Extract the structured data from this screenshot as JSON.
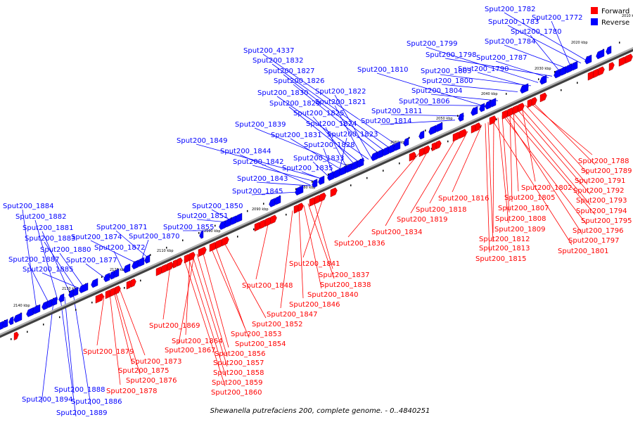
{
  "caption": "Shewanella putrefaciens 200, complete genome. - 0..4840251",
  "colors": {
    "forward": "#ff0000",
    "reverse": "#0000ff",
    "backbone": "#808080"
  },
  "legend": {
    "forward": "Forward",
    "reverse": "Reverse"
  },
  "tick_labels": [
    "2010 kbp",
    "2020 kbp",
    "2030 kbp",
    "2040 kbp",
    "2050 kbp",
    "2060 kbp",
    "2070 kbp",
    "2080 kbp",
    "2090 kbp",
    "2100 kbp",
    "2110 kbp",
    "2120 kbp",
    "2130 kbp",
    "2140 kbp"
  ],
  "reverse_genes": [
    "Sput200_1782",
    "Sput200_1772",
    "Sput200_1783",
    "Sput200_1780",
    "Sput200_1784",
    "Sput200_1799",
    "Sput200_1798",
    "Sput200_1787",
    "Sput200_1790",
    "Sput200_1810",
    "Sput200_1803",
    "Sput200_1800",
    "Sput200_1804",
    "Sput200_1806",
    "Sput200_1811",
    "Sput200_1814",
    "Sput200_4337",
    "Sput200_1832",
    "Sput200_1827",
    "Sput200_1826",
    "Sput200_1822",
    "Sput200_1830",
    "Sput200_1821",
    "Sput200_1829",
    "Sput200_1825",
    "Sput200_1839",
    "Sput200_1824",
    "Sput200_1831",
    "Sput200_1823",
    "Sput200_1849",
    "Sput200_1828",
    "Sput200_1844",
    "Sput200_1833",
    "Sput200_1842",
    "Sput200_1835",
    "Sput200_1843",
    "Sput200_1845",
    "Sput200_1850",
    "Sput200_1884",
    "Sput200_1851",
    "Sput200_1882",
    "Sput200_1855",
    "Sput200_1871",
    "Sput200_1881",
    "Sput200_1874",
    "Sput200_1870",
    "Sput200_1883",
    "Sput200_1872",
    "Sput200_1880",
    "Sput200_1887",
    "Sput200_1877",
    "Sput200_1885",
    "Sput200_1888",
    "Sput200_1894",
    "Sput200_1886",
    "Sput200_1889"
  ],
  "forward_genes": [
    "Sput200_1788",
    "Sput200_1789",
    "Sput200_1791",
    "Sput200_1802",
    "Sput200_1792",
    "Sput200_1805",
    "Sput200_1793",
    "Sput200_1816",
    "Sput200_1807",
    "Sput200_1794",
    "Sput200_1818",
    "Sput200_1795",
    "Sput200_1808",
    "Sput200_1819",
    "Sput200_1809",
    "Sput200_1796",
    "Sput200_1834",
    "Sput200_1812",
    "Sput200_1797",
    "Sput200_1813",
    "Sput200_1801",
    "Sput200_1836",
    "Sput200_1815",
    "Sput200_1841",
    "Sput200_1837",
    "Sput200_1838",
    "Sput200_1848",
    "Sput200_1840",
    "Sput200_1846",
    "Sput200_1847",
    "Sput200_1852",
    "Sput200_1869",
    "Sput200_1853",
    "Sput200_1864",
    "Sput200_1854",
    "Sput200_1867",
    "Sput200_1856",
    "Sput200_1879",
    "Sput200_1857",
    "Sput200_1873",
    "Sput200_1858",
    "Sput200_1875",
    "Sput200_1859",
    "Sput200_1876",
    "Sput200_1860",
    "Sput200_1878"
  ]
}
